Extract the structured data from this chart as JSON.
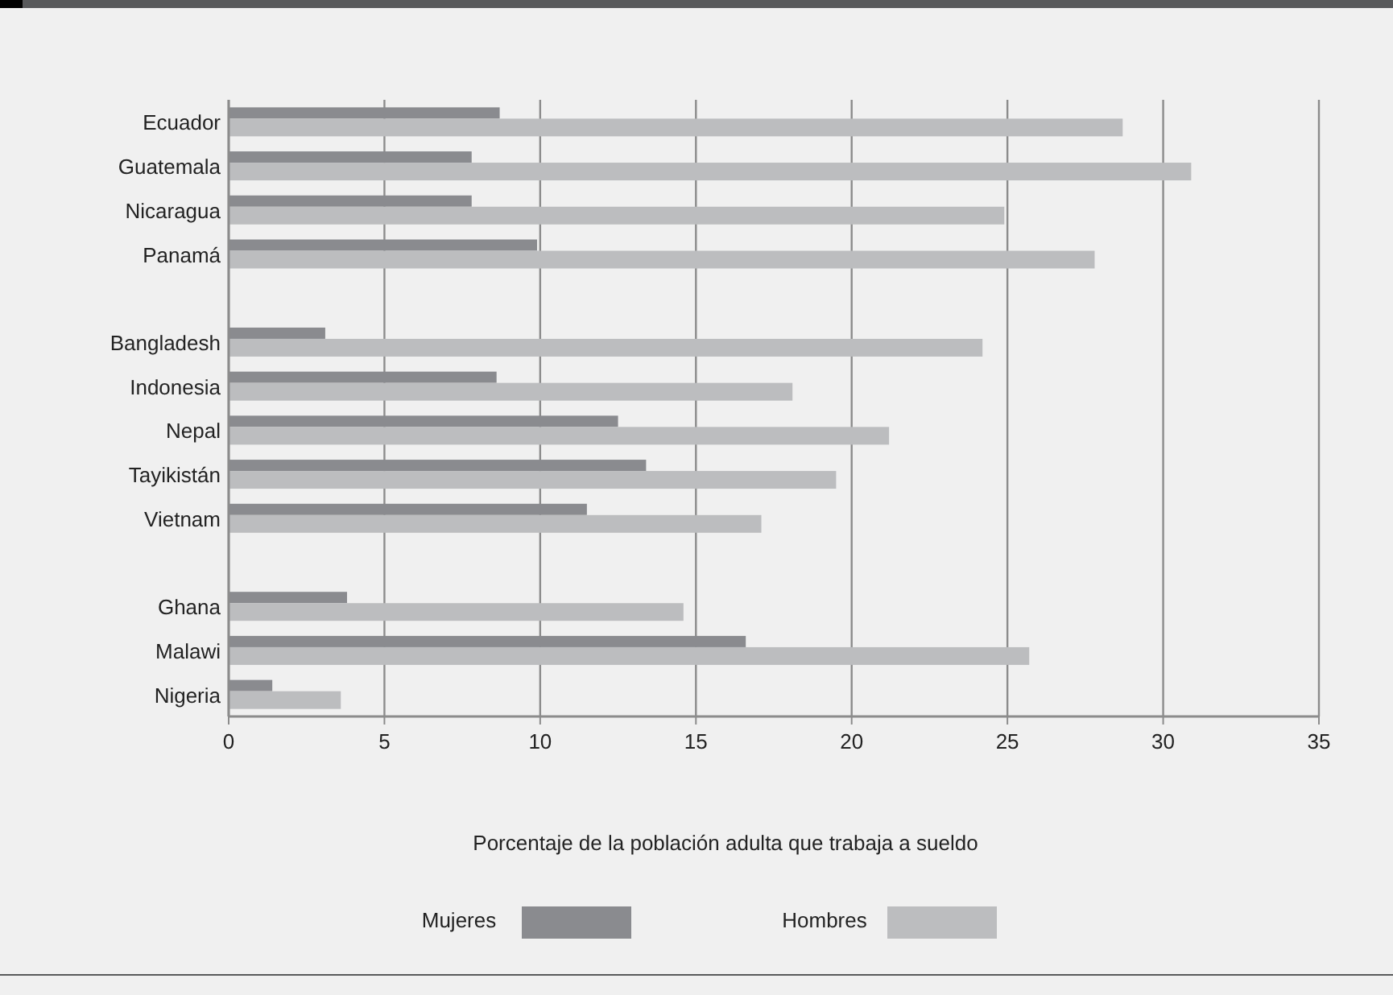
{
  "chart_data": {
    "type": "bar",
    "orientation": "horizontal",
    "xlabel": "Porcentaje de la población adulta que trabaja a sueldo",
    "categories": [
      "Ecuador",
      "Guatemala",
      "Nicaragua",
      "Panamá",
      null,
      "Bangladesh",
      "Indonesia",
      "Nepal",
      "Tayikistán",
      "Vietnam",
      null,
      "Ghana",
      "Malawi",
      "Nigeria"
    ],
    "series": [
      {
        "name": "Mujeres",
        "color": "#8a8b8f",
        "values": [
          8.7,
          7.8,
          7.8,
          9.9,
          null,
          3.1,
          8.6,
          12.5,
          13.4,
          11.5,
          null,
          3.8,
          16.6,
          1.4
        ]
      },
      {
        "name": "Hombres",
        "color": "#bcbdbf",
        "values": [
          28.7,
          30.9,
          24.9,
          27.8,
          null,
          24.2,
          18.1,
          21.2,
          19.5,
          17.1,
          null,
          14.6,
          25.7,
          3.6
        ]
      }
    ],
    "xlim": [
      0,
      35
    ],
    "xticks": [
      0,
      5,
      10,
      15,
      20,
      25,
      30,
      35
    ],
    "grid": "x",
    "legend": "bottom"
  }
}
